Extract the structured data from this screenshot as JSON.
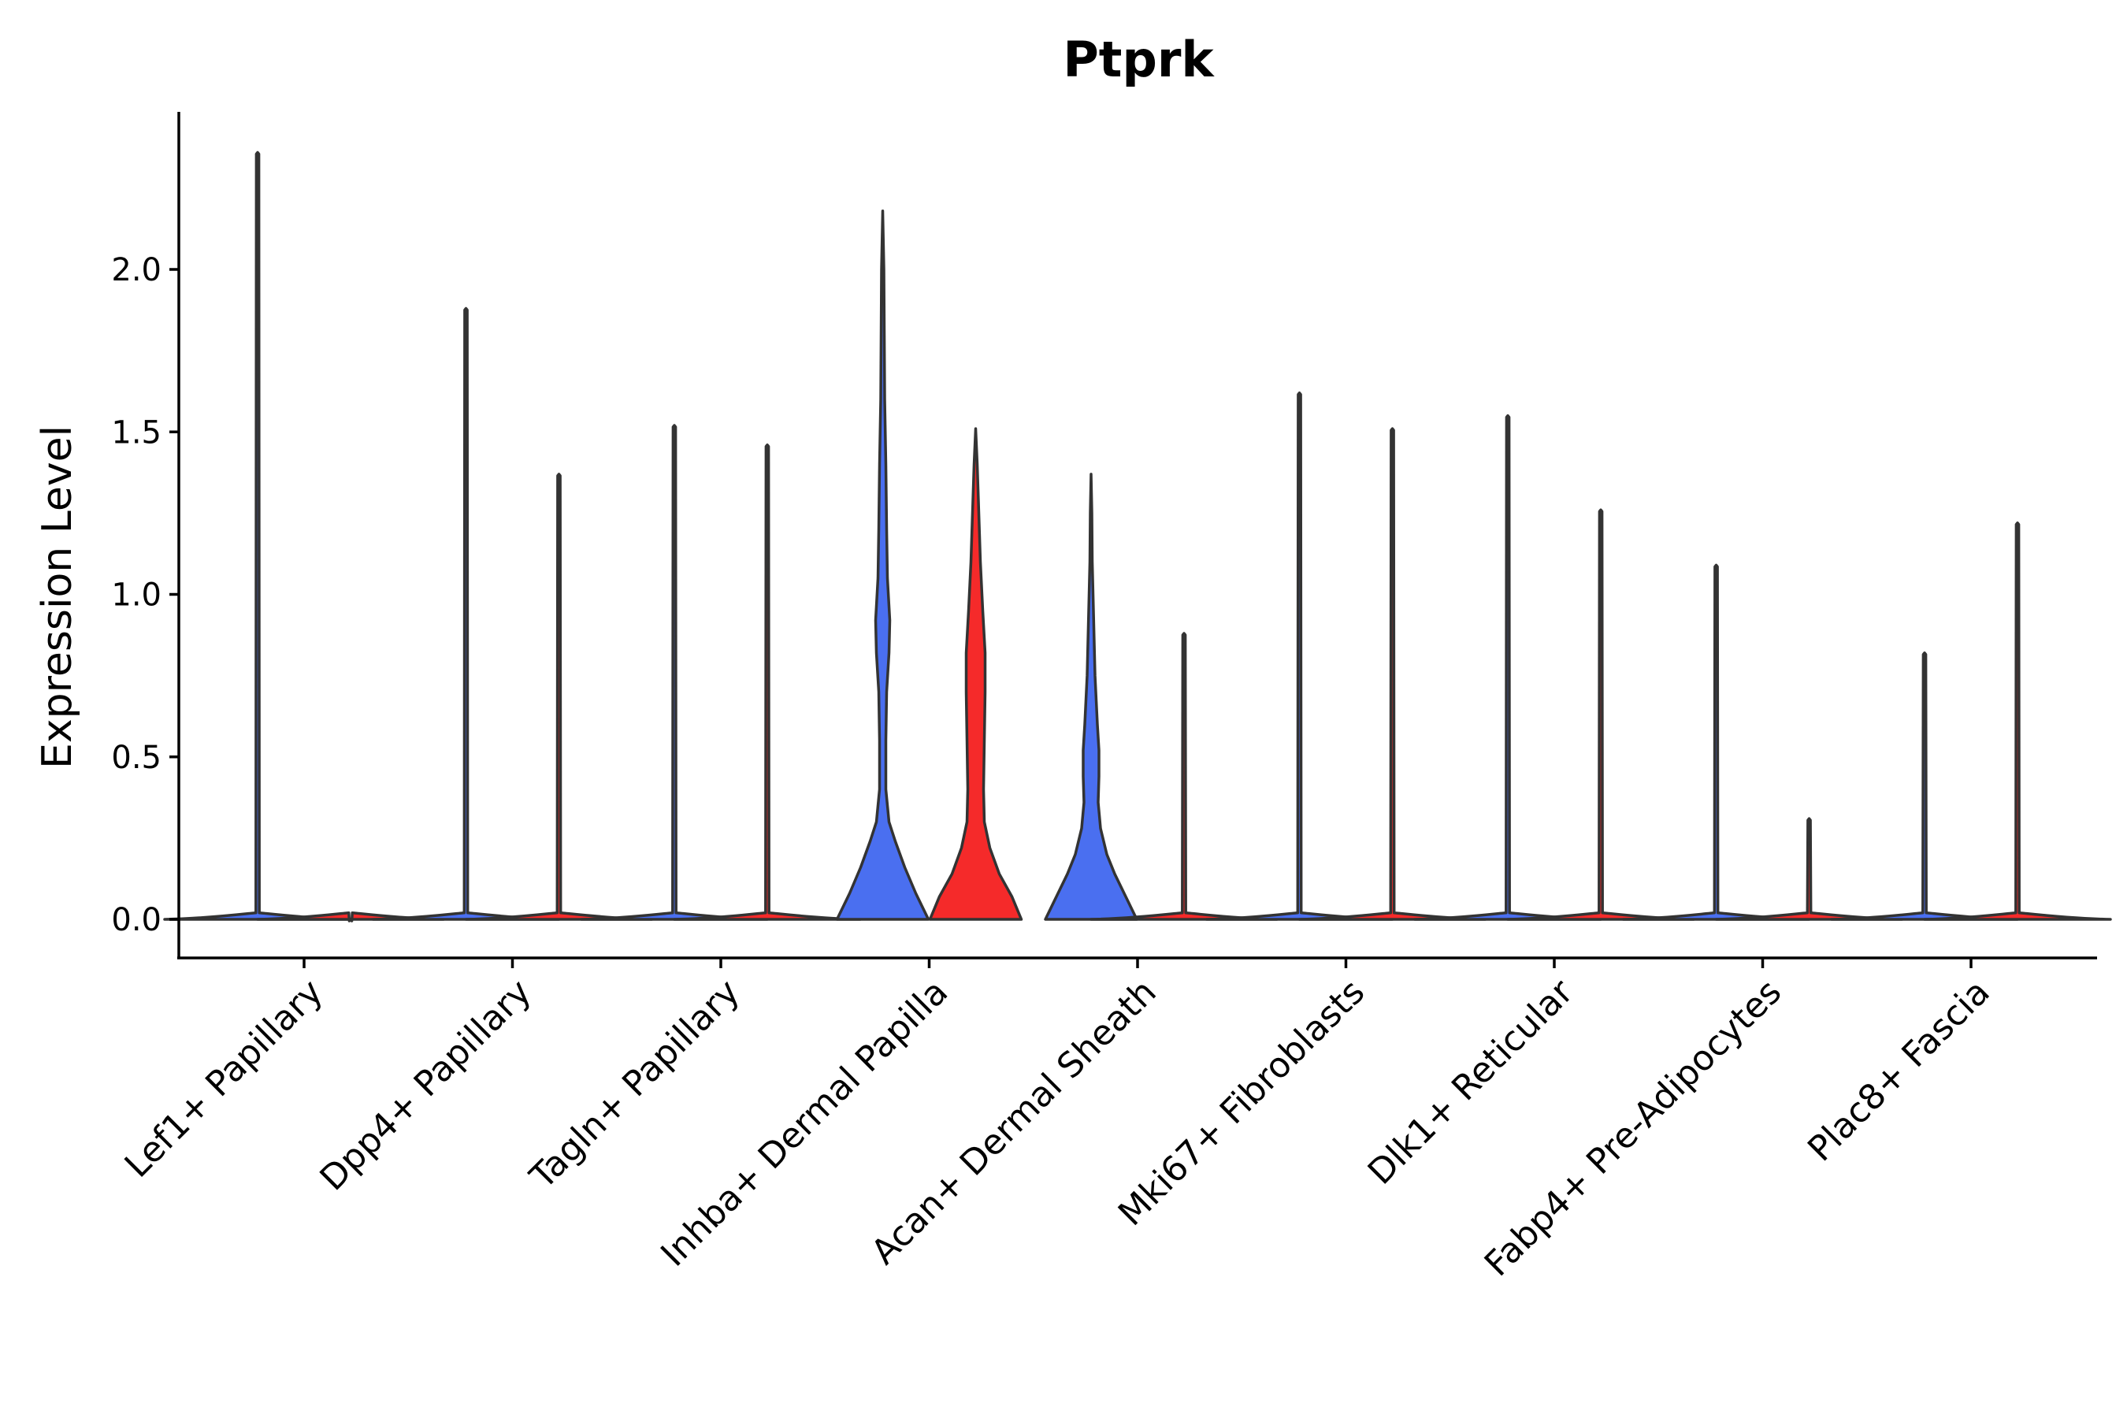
{
  "chart_data": {
    "type": "violin",
    "title": "Ptprk",
    "ylabel": "Expression Level",
    "ylim": [
      -0.12,
      2.48
    ],
    "yticks": [
      0.0,
      0.5,
      1.0,
      1.5,
      2.0
    ],
    "ytick_labels": [
      "0.0",
      "0.5",
      "1.0",
      "1.5",
      "2.0"
    ],
    "categories": [
      "Lef1+ Papillary",
      "Dpp4+ Papillary",
      "Tagln+ Papillary",
      "Inhba+ Dermal Papilla",
      "Acan+ Dermal Sheath",
      "Mki67+ Fibroblasts",
      "Dlk1+ Reticular",
      "Fabp4+ Pre-Adipocytes",
      "Plac8+ Fascia"
    ],
    "split_groups": [
      {
        "color": "#4a6ff0"
      },
      {
        "color": "#f52a2a"
      }
    ],
    "violins": [
      {
        "category": "Lef1+ Papillary",
        "side": "left",
        "color": "#4a6ff0",
        "max": 2.36
      },
      {
        "category": "Lef1+ Papillary",
        "side": "right",
        "color": "#f52a2a",
        "max": 0.0
      },
      {
        "category": "Dpp4+ Papillary",
        "side": "left",
        "color": "#4a6ff0",
        "max": 1.88
      },
      {
        "category": "Dpp4+ Papillary",
        "side": "right",
        "color": "#f52a2a",
        "max": 1.37
      },
      {
        "category": "Tagln+ Papillary",
        "side": "left",
        "color": "#4a6ff0",
        "max": 1.52
      },
      {
        "category": "Tagln+ Papillary",
        "side": "right",
        "color": "#f52a2a",
        "max": 1.46
      },
      {
        "category": "Inhba+ Dermal Papilla",
        "side": "left",
        "color": "#4a6ff0",
        "max": 2.18
      },
      {
        "category": "Inhba+ Dermal Papilla",
        "side": "right",
        "color": "#f52a2a",
        "max": 1.51
      },
      {
        "category": "Acan+ Dermal Sheath",
        "side": "left",
        "color": "#4a6ff0",
        "max": 1.37
      },
      {
        "category": "Acan+ Dermal Sheath",
        "side": "right",
        "color": "#f52a2a",
        "max": 0.88
      },
      {
        "category": "Mki67+ Fibroblasts",
        "side": "left",
        "color": "#4a6ff0",
        "max": 1.62
      },
      {
        "category": "Mki67+ Fibroblasts",
        "side": "right",
        "color": "#f52a2a",
        "max": 1.51
      },
      {
        "category": "Dlk1+ Reticular",
        "side": "left",
        "color": "#4a6ff0",
        "max": 1.55
      },
      {
        "category": "Dlk1+ Reticular",
        "side": "right",
        "color": "#f52a2a",
        "max": 1.26
      },
      {
        "category": "Fabp4+ Pre-Adipocytes",
        "side": "left",
        "color": "#4a6ff0",
        "max": 1.09
      },
      {
        "category": "Fabp4+ Pre-Adipocytes",
        "side": "right",
        "color": "#f52a2a",
        "max": 0.31
      },
      {
        "category": "Plac8+ Fascia",
        "side": "left",
        "color": "#4a6ff0",
        "max": 0.82
      },
      {
        "category": "Plac8+ Fascia",
        "side": "right",
        "color": "#f52a2a",
        "max": 1.22
      }
    ],
    "grid": false,
    "legend": "none"
  }
}
